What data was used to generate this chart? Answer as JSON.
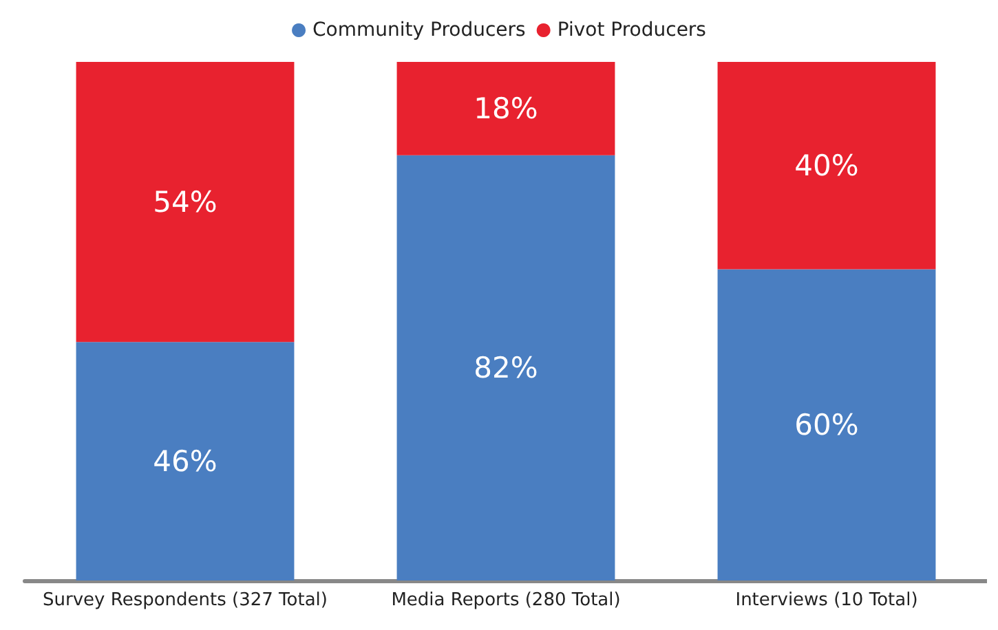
{
  "chart_data": {
    "type": "bar",
    "stacked": true,
    "categories": [
      "Survey Respondents (327 Total)",
      "Media Reports (280 Total)",
      "Interviews (10 Total)"
    ],
    "series": [
      {
        "name": "Community Producers",
        "color": "#4a7ec1",
        "values": [
          46,
          82,
          60
        ],
        "value_labels": [
          "46%",
          "82%",
          "60%"
        ]
      },
      {
        "name": "Pivot Producers",
        "color": "#e8222f",
        "values": [
          54,
          18,
          40
        ],
        "value_labels": [
          "54%",
          "18%",
          "40%"
        ]
      }
    ],
    "ylim": [
      0,
      100
    ],
    "tick_labels": "x",
    "legend": "top"
  }
}
